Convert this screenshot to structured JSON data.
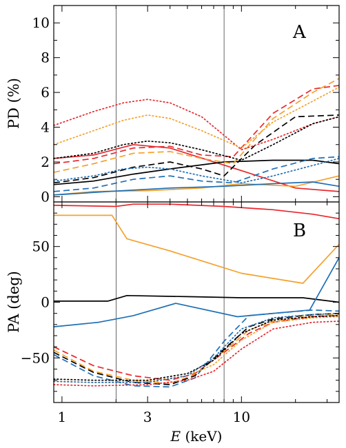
{
  "figure": {
    "xlabel": "E (keV)",
    "xlabel_italic": "E",
    "xlabel_unit": " (keV)"
  },
  "chart_data": [
    {
      "type": "line",
      "panel_label": "A",
      "ylabel": "PD (%)",
      "xscale": "log",
      "xlim": [
        0.9,
        35
      ],
      "ylim": [
        -0.3,
        11
      ],
      "yticks": [
        0,
        2,
        4,
        6,
        8,
        10
      ],
      "xticks": [
        1,
        3,
        10
      ],
      "vlines": [
        2.0,
        8.0
      ],
      "grid": false,
      "legend": "none",
      "series": [
        {
          "color": "#e8262b",
          "dash": "solid",
          "x": [
            0.9,
            1.5,
            2.5,
            4,
            10,
            20,
            35
          ],
          "values": [
            2.2,
            2.4,
            3.0,
            2.8,
            1.5,
            0.5,
            0.3
          ]
        },
        {
          "color": "#f5a02a",
          "dash": "solid",
          "x": [
            0.9,
            1.5,
            3,
            6,
            10,
            20,
            35
          ],
          "values": [
            0.1,
            0.3,
            0.35,
            0.5,
            0.75,
            0.6,
            1.2
          ]
        },
        {
          "color": "#000000",
          "dash": "solid",
          "x": [
            0.9,
            1.5,
            2.5,
            4,
            8,
            15,
            25,
            35
          ],
          "values": [
            0.7,
            0.9,
            1.3,
            1.6,
            2.0,
            2.1,
            2.1,
            1.9
          ]
        },
        {
          "color": "#1e6fb5",
          "dash": "solid",
          "x": [
            0.9,
            1.8,
            4,
            8,
            15,
            25,
            35
          ],
          "values": [
            0.1,
            0.3,
            0.5,
            0.6,
            0.75,
            0.85,
            0.6
          ]
        },
        {
          "color": "#e8262b",
          "dash": "dashed",
          "x": [
            0.9,
            1.5,
            2.5,
            4,
            6,
            9,
            15,
            25,
            35
          ],
          "values": [
            1.9,
            2.2,
            2.8,
            2.9,
            2.4,
            2.3,
            4.8,
            6.2,
            6.4
          ]
        },
        {
          "color": "#f5a02a",
          "dash": "dashed",
          "x": [
            0.9,
            1.5,
            2.5,
            4,
            6,
            9,
            15,
            25,
            35
          ],
          "values": [
            1.4,
            1.9,
            2.5,
            2.6,
            2.2,
            1.9,
            4.5,
            6.0,
            6.8
          ]
        },
        {
          "color": "#000000",
          "dash": "dashed",
          "x": [
            0.9,
            1.5,
            2.5,
            4,
            6,
            8,
            12,
            20,
            35
          ],
          "values": [
            0.8,
            1.1,
            1.7,
            2.0,
            1.6,
            1.2,
            3.0,
            4.6,
            4.7
          ]
        },
        {
          "color": "#1e6fb5",
          "dash": "dashed",
          "x": [
            0.9,
            1.5,
            2.5,
            4,
            6,
            9,
            15,
            25,
            35
          ],
          "values": [
            0.3,
            0.5,
            1.0,
            1.2,
            0.9,
            0.8,
            1.6,
            2.2,
            2.3
          ]
        },
        {
          "color": "#e8262b",
          "dash": "dotted",
          "x": [
            0.9,
            1.5,
            2.2,
            3,
            4,
            6,
            10,
            15,
            25,
            35
          ],
          "values": [
            4.1,
            4.9,
            5.4,
            5.6,
            5.4,
            4.6,
            2.7,
            3.3,
            4.2,
            4.6
          ]
        },
        {
          "color": "#f5a02a",
          "dash": "dotted",
          "x": [
            0.9,
            1.5,
            2.2,
            3,
            4,
            6,
            10,
            15,
            25,
            35
          ],
          "values": [
            3.0,
            3.8,
            4.4,
            4.7,
            4.5,
            3.8,
            2.8,
            4.3,
            5.5,
            6.3
          ]
        },
        {
          "color": "#000000",
          "dash": "dotted",
          "x": [
            0.9,
            1.5,
            2.2,
            3,
            4,
            6,
            10,
            15,
            25,
            35
          ],
          "values": [
            2.2,
            2.5,
            3.0,
            3.2,
            3.1,
            2.7,
            2.1,
            3.0,
            4.2,
            4.6
          ]
        },
        {
          "color": "#1e6fb5",
          "dash": "dotted",
          "x": [
            0.9,
            1.5,
            2.2,
            3,
            4,
            6,
            10,
            15,
            25,
            35
          ],
          "values": [
            0.9,
            1.2,
            1.6,
            1.7,
            1.6,
            1.2,
            0.8,
            1.2,
            1.8,
            2.2
          ]
        }
      ]
    },
    {
      "type": "line",
      "panel_label": "B",
      "ylabel": "PA (deg)",
      "xscale": "log",
      "xlim": [
        0.9,
        35
      ],
      "ylim": [
        -90,
        90
      ],
      "yticks": [
        -50,
        0,
        50
      ],
      "xticks": [
        1,
        3,
        10
      ],
      "vlines": [
        2.0,
        8.0
      ],
      "grid": false,
      "legend": "none",
      "series": [
        {
          "color": "#e8262b",
          "dash": "solid",
          "x": [
            0.9,
            2,
            2.5,
            4,
            8,
            15,
            25,
            35
          ],
          "values": [
            87,
            86,
            88,
            88,
            86,
            83,
            79,
            75
          ]
        },
        {
          "color": "#f5a02a",
          "dash": "solid",
          "x": [
            0.9,
            1.9,
            2.3,
            4,
            10,
            22,
            35
          ],
          "values": [
            78,
            78,
            57,
            46,
            26,
            17,
            52
          ]
        },
        {
          "color": "#000000",
          "dash": "solid",
          "x": [
            0.9,
            1.8,
            2.3,
            5,
            10,
            22,
            35
          ],
          "values": [
            1,
            1,
            6,
            5,
            4,
            4,
            0
          ]
        },
        {
          "color": "#1e6fb5",
          "dash": "solid",
          "x": [
            0.9,
            1.6,
            2.0,
            2.5,
            4.3,
            9.5,
            24,
            35
          ],
          "values": [
            -22,
            -18,
            -15,
            -12,
            -1,
            -13,
            -7,
            40
          ]
        },
        {
          "color": "#e8262b",
          "dash": "dashed",
          "x": [
            0.9,
            1.5,
            2.5,
            4,
            5.5,
            8,
            11,
            15,
            25,
            35
          ],
          "values": [
            -40,
            -57,
            -66,
            -70,
            -64,
            -45,
            -28,
            -18,
            -13,
            -12
          ]
        },
        {
          "color": "#f5a02a",
          "dash": "dashed",
          "x": [
            0.9,
            1.5,
            2.5,
            4,
            5.5,
            8,
            11,
            15,
            25,
            35
          ],
          "values": [
            -43,
            -62,
            -70,
            -73,
            -65,
            -44,
            -25,
            -17,
            -12,
            -11
          ]
        },
        {
          "color": "#000000",
          "dash": "dashed",
          "x": [
            0.9,
            1.5,
            2.5,
            4,
            5.5,
            8,
            11,
            15,
            25,
            35
          ],
          "values": [
            -45,
            -63,
            -72,
            -74,
            -66,
            -42,
            -22,
            -15,
            -11,
            -10
          ]
        },
        {
          "color": "#1e6fb5",
          "dash": "dashed",
          "x": [
            0.9,
            1.5,
            2.5,
            4,
            5.5,
            8,
            11,
            15,
            25,
            35
          ],
          "values": [
            -47,
            -66,
            -75,
            -76,
            -68,
            -35,
            -12,
            -10,
            -7,
            -8
          ]
        },
        {
          "color": "#e8262b",
          "dash": "dotted",
          "x": [
            0.9,
            1.5,
            3,
            5,
            7,
            10,
            15,
            25,
            35
          ],
          "values": [
            -74,
            -75,
            -74,
            -70,
            -62,
            -42,
            -24,
            -18,
            -17
          ]
        },
        {
          "color": "#f5a02a",
          "dash": "dotted",
          "x": [
            0.9,
            1.5,
            3,
            5,
            7,
            10,
            15,
            25,
            35
          ],
          "values": [
            -71,
            -72,
            -71,
            -66,
            -56,
            -34,
            -18,
            -14,
            -13
          ]
        },
        {
          "color": "#000000",
          "dash": "dotted",
          "x": [
            0.9,
            1.5,
            3,
            5,
            7,
            10,
            15,
            25,
            35
          ],
          "values": [
            -69,
            -70,
            -70,
            -64,
            -52,
            -28,
            -16,
            -13,
            -12
          ]
        },
        {
          "color": "#1e6fb5",
          "dash": "dotted",
          "x": [
            0.9,
            1.5,
            3,
            5,
            7,
            10,
            15,
            25,
            35
          ],
          "values": [
            -71,
            -72,
            -72,
            -66,
            -50,
            -24,
            -14,
            -11,
            -10
          ]
        }
      ]
    }
  ]
}
